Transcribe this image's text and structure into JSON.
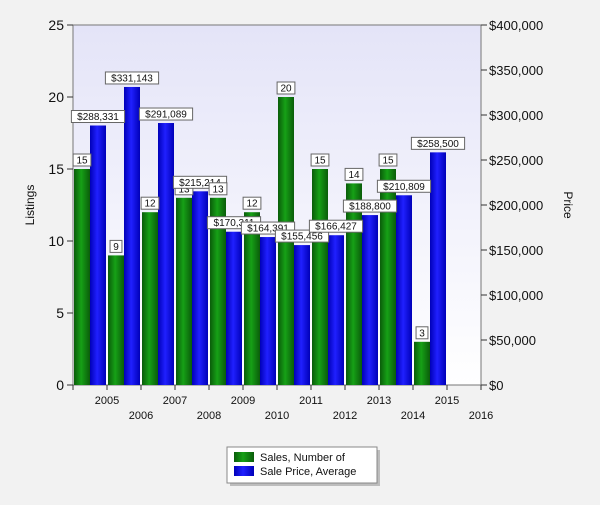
{
  "chart_data": {
    "type": "bar",
    "x_ticks_row1": [
      "2005",
      "2007",
      "2009",
      "2011",
      "2013",
      "2015"
    ],
    "x_ticks_row2": [
      "2006",
      "2008",
      "2010",
      "2012",
      "2014",
      "2016"
    ],
    "categories": [
      "2005",
      "2006",
      "2007",
      "2008",
      "2009",
      "2010",
      "2011",
      "2012",
      "2013",
      "2014",
      "2015"
    ],
    "ylabel_left": "Listings",
    "ylabel_right": "Price",
    "ylim_left": [
      0,
      25
    ],
    "ylim_right": [
      0,
      400000
    ],
    "yticks_left": [
      "0",
      "5",
      "10",
      "15",
      "20",
      "25"
    ],
    "yticks_right": [
      "$0",
      "$50,000",
      "$100,000",
      "$150,000",
      "$200,000",
      "$250,000",
      "$300,000",
      "$350,000",
      "$400,000"
    ],
    "grid": false,
    "legend_position": "bottom-center",
    "series": [
      {
        "name": "Sales, Number of",
        "axis": "left",
        "color": "#0f7a0f",
        "values": [
          15,
          9,
          12,
          13,
          13,
          12,
          20,
          15,
          14,
          15,
          3
        ],
        "labels": [
          "15",
          "9",
          "12",
          "13",
          "13",
          "12",
          "20",
          "15",
          "14",
          "15",
          "3"
        ]
      },
      {
        "name": "Sale Price, Average",
        "axis": "right",
        "color": "#0000ee",
        "values": [
          288331,
          331143,
          291089,
          215214,
          170311,
          164391,
          155456,
          166427,
          188800,
          210809,
          258500
        ],
        "labels": [
          "$288,331",
          "$331,143",
          "$291,089",
          "$215,214",
          "$170,311",
          "$164,391",
          "$155,456",
          "$166,427",
          "$188,800",
          "$210,809",
          "$258,500"
        ]
      }
    ]
  }
}
